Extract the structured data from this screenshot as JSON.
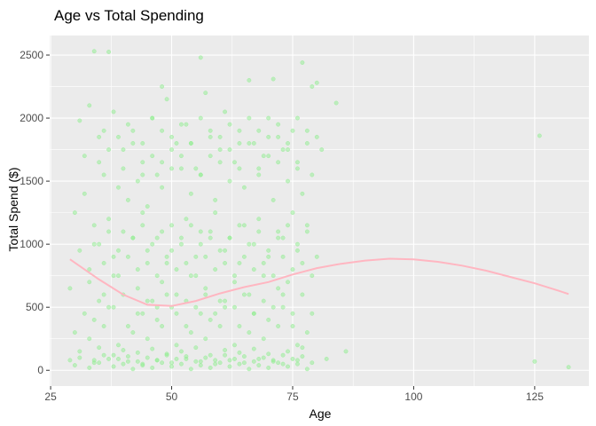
{
  "chart_data": {
    "type": "scatter",
    "title": "Age vs Total Spending",
    "xlabel": "Age",
    "ylabel": "Total Spend ($)",
    "xlim": [
      24.8,
      136.2
    ],
    "ylim": [
      -125,
      2655
    ],
    "x_ticks": [
      25,
      50,
      75,
      100,
      125
    ],
    "y_ticks": [
      0,
      500,
      1000,
      1500,
      2000,
      2500
    ],
    "grid": true,
    "point_color": "#90EE90",
    "point_opacity": 0.5,
    "smooth_color": "#FFB6C1",
    "smooth_line": {
      "x": [
        29,
        35,
        40,
        45,
        50,
        55,
        60,
        65,
        70,
        75,
        80,
        85,
        90,
        95,
        100,
        105,
        110,
        115,
        120,
        125,
        130,
        132
      ],
      "y": [
        880,
        720,
        600,
        520,
        510,
        550,
        610,
        660,
        700,
        760,
        810,
        845,
        870,
        885,
        880,
        860,
        830,
        790,
        740,
        690,
        630,
        605
      ]
    },
    "series": [
      {
        "x": [
          34,
          37,
          56,
          48,
          71,
          77,
          79,
          80,
          84,
          126,
          125,
          132,
          86,
          33,
          31,
          35,
          38,
          40,
          42,
          44,
          46,
          47,
          49,
          51,
          52,
          53,
          55,
          57,
          58,
          60,
          61,
          63,
          64,
          66,
          67,
          69,
          70,
          72,
          73,
          75,
          76,
          78,
          81,
          32,
          36,
          39,
          41,
          43,
          45,
          48,
          50,
          54,
          56,
          59,
          62,
          65,
          68,
          71,
          74,
          77,
          79,
          30,
          34,
          37,
          40,
          44,
          47,
          50,
          53,
          56,
          59,
          62,
          65,
          68,
          72,
          75,
          78,
          31,
          35,
          38,
          42,
          45,
          49,
          52,
          55,
          58,
          61,
          64,
          67,
          70,
          73,
          76,
          80,
          29,
          33,
          36,
          39,
          43,
          46,
          48,
          51,
          54,
          57,
          60,
          63,
          66,
          69,
          72,
          74,
          77,
          32,
          34,
          37,
          41,
          44,
          47,
          50,
          53,
          56,
          58,
          61,
          64,
          67,
          70,
          73,
          75,
          79,
          30,
          33,
          36,
          39,
          42,
          45,
          48,
          51,
          54,
          57,
          60,
          63,
          66,
          69,
          72,
          76,
          78,
          31,
          35,
          38,
          40,
          43,
          46,
          49,
          52,
          55,
          58,
          61,
          64,
          67,
          70,
          74,
          77,
          29,
          34,
          37,
          41,
          44,
          47,
          50,
          53,
          56,
          59,
          62,
          65,
          68,
          71,
          73,
          76,
          79,
          82,
          30,
          33,
          35,
          38,
          40,
          42,
          44,
          46,
          48,
          50,
          52,
          54,
          56,
          58,
          60,
          62,
          64,
          66,
          68,
          70,
          72,
          74,
          76,
          78,
          31,
          34,
          36,
          39,
          41,
          43,
          45,
          47,
          49,
          51,
          53,
          55,
          57,
          59,
          61,
          63,
          65,
          67,
          69,
          71,
          73,
          75,
          77,
          32,
          35,
          37,
          40,
          42,
          44,
          46,
          48,
          50,
          52,
          54,
          56,
          58,
          60,
          62,
          64,
          66,
          68,
          70,
          72,
          74,
          76,
          33,
          36,
          38,
          41,
          43,
          45,
          47,
          49,
          51,
          53,
          55,
          57,
          59,
          61,
          63,
          65,
          67,
          69,
          71,
          73,
          75,
          77,
          79,
          34,
          37,
          39,
          42,
          44,
          46,
          48,
          50,
          52,
          54,
          56,
          58,
          60,
          62,
          64,
          66,
          68,
          70,
          72,
          74,
          76,
          78,
          35,
          38,
          40,
          43,
          45,
          47,
          49,
          51,
          53,
          55,
          57,
          59,
          61,
          63,
          65,
          67,
          69,
          71,
          73,
          75,
          36,
          39,
          41,
          44,
          46,
          48,
          50,
          52,
          54,
          56,
          58,
          60,
          62,
          64,
          66,
          68,
          70,
          72,
          74,
          76,
          78,
          80
        ],
        "y": [
          2530,
          2525,
          2480,
          2250,
          2310,
          2440,
          2250,
          2280,
          2120,
          1860,
          70,
          25,
          150,
          2100,
          1980,
          1850,
          2050,
          1750,
          1900,
          1650,
          2000,
          1550,
          2150,
          1800,
          1700,
          1950,
          1600,
          2200,
          1850,
          1750,
          2050,
          1650,
          1900,
          2300,
          1800,
          1700,
          2000,
          1850,
          1750,
          1900,
          1650,
          1800,
          1750,
          1400,
          1550,
          1450,
          1350,
          1500,
          1300,
          1450,
          1600,
          1400,
          1550,
          1350,
          1500,
          1450,
          1600,
          1350,
          1500,
          1400,
          1550,
          1250,
          1150,
          1200,
          1100,
          1250,
          1050,
          1150,
          1200,
          1100,
          1250,
          1050,
          1150,
          1200,
          1100,
          1250,
          1150,
          950,
          1000,
          900,
          1050,
          950,
          850,
          1000,
          900,
          1050,
          950,
          850,
          1000,
          900,
          1050,
          950,
          900,
          650,
          700,
          600,
          750,
          650,
          550,
          700,
          600,
          750,
          650,
          550,
          700,
          600,
          750,
          650,
          700,
          600,
          450,
          400,
          500,
          350,
          450,
          400,
          500,
          350,
          450,
          400,
          500,
          350,
          450,
          400,
          500,
          350,
          450,
          300,
          250,
          350,
          200,
          300,
          250,
          350,
          200,
          300,
          250,
          350,
          200,
          300,
          250,
          350,
          200,
          300,
          150,
          180,
          120,
          160,
          140,
          170,
          130,
          150,
          180,
          120,
          160,
          140,
          170,
          130,
          150,
          180,
          80,
          60,
          90,
          70,
          50,
          80,
          60,
          90,
          70,
          50,
          80,
          60,
          90,
          70,
          50,
          80,
          60,
          90,
          40,
          20,
          60,
          30,
          50,
          10,
          40,
          20,
          60,
          30,
          50,
          10,
          40,
          20,
          60,
          30,
          50,
          10,
          40,
          20,
          60,
          30,
          50,
          10,
          100,
          80,
          120,
          90,
          110,
          70,
          100,
          80,
          120,
          90,
          110,
          70,
          100,
          80,
          120,
          90,
          110,
          70,
          100,
          80,
          120,
          90,
          110,
          1700,
          1650,
          1750,
          1600,
          1800,
          1550,
          1700,
          1650,
          1750,
          1600,
          1800,
          1550,
          1700,
          1650,
          1750,
          1600,
          1800,
          1550,
          1700,
          1650,
          1750,
          1600,
          800,
          850,
          750,
          900,
          800,
          850,
          750,
          900,
          800,
          850,
          750,
          900,
          800,
          850,
          750,
          900,
          800,
          850,
          750,
          900,
          800,
          850,
          750,
          1000,
          1100,
          950,
          1050,
          1150,
          1000,
          1100,
          950,
          1050,
          1150,
          1000,
          1100,
          950,
          1050,
          1150,
          1000,
          1100,
          950,
          1050,
          1150,
          1000,
          1100,
          550,
          500,
          600,
          450,
          550,
          500,
          600,
          450,
          550,
          500,
          600,
          450,
          550,
          500,
          600,
          450,
          550,
          500,
          600,
          450,
          1900,
          1850,
          1950,
          1800,
          2000,
          1900,
          1850,
          1950,
          1800,
          2000,
          1900,
          1850,
          1950,
          1800,
          2000,
          1900,
          1850,
          1950,
          1800,
          2000,
          1900,
          1850
        ]
      }
    ]
  }
}
